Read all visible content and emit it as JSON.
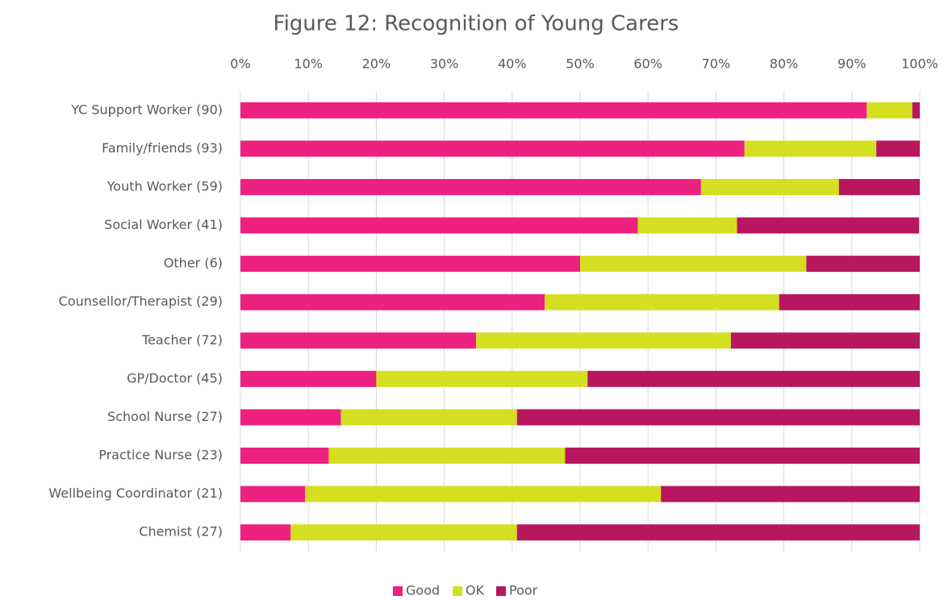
{
  "chart_data": {
    "type": "stacked-bar-horizontal",
    "title": "Figure 12: Recognition of Young Carers",
    "categories": [
      "YC Support Worker (90)",
      "Family/friends (93)",
      "Youth Worker (59)",
      "Social Worker (41)",
      "Other (6)",
      "Counsellor/Therapist (29)",
      "Teacher (72)",
      "GP/Doctor (45)",
      "School Nurse (27)",
      "Practice Nurse (23)",
      "Wellbeing Coordinator (21)",
      "Chemist (27)"
    ],
    "series": [
      {
        "name": "Good",
        "color": "#ec2180",
        "values": [
          92.2,
          74.2,
          67.8,
          58.5,
          50,
          44.8,
          34.7,
          20,
          14.8,
          13.0,
          9.5,
          7.4
        ]
      },
      {
        "name": "OK",
        "color": "#d5df22",
        "values": [
          6.7,
          19.4,
          20.3,
          14.6,
          33.3,
          34.5,
          37.5,
          31.1,
          25.9,
          34.8,
          52.4,
          33.3
        ]
      },
      {
        "name": "Poor",
        "color": "#b8175f",
        "values": [
          1.1,
          6.4,
          11.9,
          26.8,
          16.7,
          20.7,
          27.8,
          48.9,
          59.3,
          52.2,
          38.1,
          59.3
        ]
      }
    ],
    "xlim": [
      0,
      100
    ],
    "xticks": [
      {
        "value": 0,
        "label": "0%"
      },
      {
        "value": 10,
        "label": "10%"
      },
      {
        "value": 20,
        "label": "20%"
      },
      {
        "value": 30,
        "label": "30%"
      },
      {
        "value": 40,
        "label": "40%"
      },
      {
        "value": 50,
        "label": "50%"
      },
      {
        "value": 60,
        "label": "60%"
      },
      {
        "value": 70,
        "label": "70%"
      },
      {
        "value": 80,
        "label": "80%"
      },
      {
        "value": 90,
        "label": "90%"
      },
      {
        "value": 100,
        "label": "100%"
      }
    ],
    "grid": true,
    "legend": "bottom"
  }
}
